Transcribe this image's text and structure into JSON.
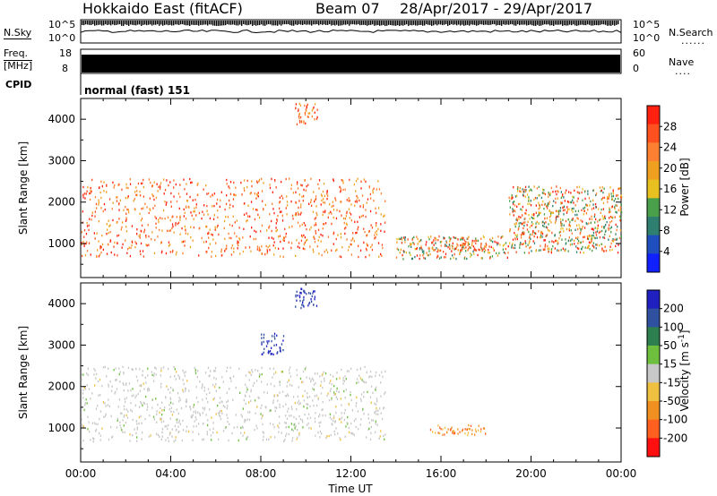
{
  "header": {
    "station": "Hokkaido East (fitACF)",
    "beam": "Beam 07",
    "dates": "28/Apr/2017 - 29/Apr/2017"
  },
  "strip": {
    "nsky_label": "N.Sky",
    "nsky_top": "10^5",
    "nsky_bottom": "10^0",
    "nsearch_label": "N.Search",
    "nsearch_top": "10^5",
    "nsearch_bottom": "10^0",
    "freq_label_1": "Freq.",
    "freq_label_2": "[MHz]",
    "freq_top": "18",
    "freq_bottom": "8",
    "nave_label": "Nave",
    "nave_top": "60",
    "nave_bottom": "0",
    "cpid_label": "CPID",
    "cpid_value": "normal (fast) 151"
  },
  "colors": {
    "power": [
      "#1020ff",
      "#1f4fbf",
      "#2e7f6f",
      "#4aa04a",
      "#e8c020",
      "#f0a020",
      "#ff8030",
      "#ff5020",
      "#ff2010"
    ],
    "velocity": [
      "#2020c0",
      "#3050a0",
      "#2e7f4f",
      "#6fbf3f",
      "#c8c8c8",
      "#f0c040",
      "#f09020",
      "#ff6020",
      "#ff1010"
    ]
  },
  "chart_data": [
    {
      "type": "heatmap",
      "title": "",
      "xlabel": "Time UT",
      "ylabel": "Slant Range [km]",
      "xlim": [
        "00:00",
        "00:00"
      ],
      "x_ticks": [
        "00:00",
        "04:00",
        "08:00",
        "12:00",
        "16:00",
        "20:00",
        "00:00"
      ],
      "ylim": [
        180,
        4500
      ],
      "y_ticks": [
        1000,
        2000,
        3000,
        4000
      ],
      "colorbar": {
        "label": "Power [dB]",
        "ticks": [
          4,
          8,
          12,
          16,
          20,
          24,
          28
        ],
        "range": [
          0,
          30
        ]
      },
      "scatter_regions": [
        {
          "t_start": 0.0,
          "t_end": 13.5,
          "range_start": 700,
          "range_end": 2600,
          "level": "high"
        },
        {
          "t_start": 14.0,
          "t_end": 19.0,
          "range_start": 650,
          "range_end": 1200,
          "level": "mixed"
        },
        {
          "t_start": 15.5,
          "t_end": 18.0,
          "range_start": 850,
          "range_end": 1050,
          "level": "high"
        },
        {
          "t_start": 9.5,
          "t_end": 10.5,
          "range_start": 3900,
          "range_end": 4400,
          "level": "high"
        },
        {
          "t_start": 19.0,
          "t_end": 24.0,
          "range_start": 800,
          "range_end": 2400,
          "level": "mixed"
        }
      ]
    },
    {
      "type": "heatmap",
      "title": "",
      "xlabel": "Time UT",
      "ylabel": "Slant Range [km]",
      "xlim": [
        "00:00",
        "00:00"
      ],
      "x_ticks": [
        "00:00",
        "04:00",
        "08:00",
        "12:00",
        "16:00",
        "20:00",
        "00:00"
      ],
      "ylim": [
        180,
        4500
      ],
      "y_ticks": [
        1000,
        2000,
        3000,
        4000
      ],
      "colorbar": {
        "label": "Velocity [m s^-1]",
        "ticks": [
          200,
          100,
          50,
          15,
          -15,
          -50,
          -100,
          -200
        ],
        "range": [
          -250,
          250
        ]
      },
      "scatter_regions": [
        {
          "t_start": 0.0,
          "t_end": 13.5,
          "range_start": 700,
          "range_end": 2500,
          "level": "near-zero"
        },
        {
          "t_start": 15.5,
          "t_end": 18.0,
          "range_start": 850,
          "range_end": 1100,
          "level": "negative"
        },
        {
          "t_start": 9.5,
          "t_end": 10.5,
          "range_start": 3900,
          "range_end": 4400,
          "level": "positive"
        },
        {
          "t_start": 8.0,
          "t_end": 9.0,
          "range_start": 2800,
          "range_end": 3300,
          "level": "positive"
        }
      ]
    }
  ],
  "x_axis_title": "Time UT"
}
